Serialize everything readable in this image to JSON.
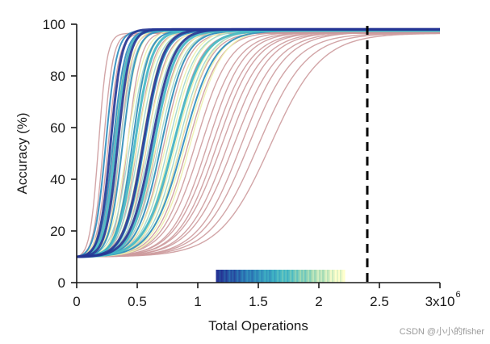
{
  "chart_data": {
    "type": "line",
    "xlabel": "Total Operations",
    "ylabel": "Accuracy (%)",
    "xlim": [
      0,
      3000000
    ],
    "ylim": [
      0,
      100
    ],
    "xticks": [
      0,
      500000,
      1000000,
      1500000,
      2000000,
      2500000,
      3000000
    ],
    "xtick_labels": [
      "0",
      "0.5",
      "1",
      "1.5",
      "2",
      "2.5",
      "3x10"
    ],
    "x_exponent": "6",
    "yticks": [
      0,
      20,
      40,
      60,
      80,
      100
    ],
    "ytick_labels": [
      "0",
      "20",
      "40",
      "60",
      "80",
      "100"
    ],
    "vertical_reference_line": {
      "x": 2400000,
      "style": "dashed",
      "color": "#000000"
    },
    "curve_model": "sigmoid accuracy from baseline 10% to a plateau near 96-98%, with midpoint (M, millions of operations) and width (W, millions)",
    "baseline_accuracy": 10,
    "series_groups": [
      {
        "name": "pink curves",
        "color": "#cd9b9d",
        "curves": [
          {
            "M": 0.18,
            "W": 0.035,
            "top": 96.5
          },
          {
            "M": 0.22,
            "W": 0.04,
            "top": 96.5
          },
          {
            "M": 0.26,
            "W": 0.045,
            "top": 96.5
          },
          {
            "M": 0.31,
            "W": 0.05,
            "top": 97
          },
          {
            "M": 0.36,
            "W": 0.05,
            "top": 97
          },
          {
            "M": 0.42,
            "W": 0.055,
            "top": 97
          },
          {
            "M": 0.5,
            "W": 0.07,
            "top": 97
          },
          {
            "M": 0.58,
            "W": 0.08,
            "top": 97
          },
          {
            "M": 0.66,
            "W": 0.09,
            "top": 97
          },
          {
            "M": 0.72,
            "W": 0.1,
            "top": 97
          },
          {
            "M": 0.8,
            "W": 0.11,
            "top": 97
          },
          {
            "M": 0.86,
            "W": 0.12,
            "top": 97
          },
          {
            "M": 0.92,
            "W": 0.13,
            "top": 97
          },
          {
            "M": 0.98,
            "W": 0.14,
            "top": 97
          },
          {
            "M": 1.03,
            "W": 0.15,
            "top": 97
          },
          {
            "M": 1.08,
            "W": 0.15,
            "top": 97
          },
          {
            "M": 1.12,
            "W": 0.16,
            "top": 97
          },
          {
            "M": 1.16,
            "W": 0.16,
            "top": 97
          },
          {
            "M": 1.2,
            "W": 0.17,
            "top": 97
          },
          {
            "M": 1.25,
            "W": 0.17,
            "top": 97
          },
          {
            "M": 1.3,
            "W": 0.18,
            "top": 97
          },
          {
            "M": 1.36,
            "W": 0.18,
            "top": 97
          },
          {
            "M": 1.42,
            "W": 0.19,
            "top": 96.5
          },
          {
            "M": 1.5,
            "W": 0.2,
            "top": 96.5
          },
          {
            "M": 1.6,
            "W": 0.21,
            "top": 96.5
          }
        ]
      },
      {
        "name": "yellow-green curves",
        "color": "#eef2b0",
        "curves": [
          {
            "M": 0.3,
            "W": 0.06,
            "top": 98
          },
          {
            "M": 0.34,
            "W": 0.06,
            "top": 98
          },
          {
            "M": 0.38,
            "W": 0.06,
            "top": 98
          },
          {
            "M": 0.42,
            "W": 0.07,
            "top": 98
          },
          {
            "M": 0.46,
            "W": 0.07,
            "top": 98
          },
          {
            "M": 0.5,
            "W": 0.08,
            "top": 98
          },
          {
            "M": 0.54,
            "W": 0.08,
            "top": 98
          },
          {
            "M": 0.58,
            "W": 0.09,
            "top": 98
          },
          {
            "M": 0.62,
            "W": 0.09,
            "top": 98
          },
          {
            "M": 0.66,
            "W": 0.1,
            "top": 98
          },
          {
            "M": 0.7,
            "W": 0.1,
            "top": 98
          },
          {
            "M": 0.74,
            "W": 0.11,
            "top": 98
          },
          {
            "M": 0.78,
            "W": 0.11,
            "top": 98
          },
          {
            "M": 0.82,
            "W": 0.12,
            "top": 98
          },
          {
            "M": 0.86,
            "W": 0.12,
            "top": 98
          },
          {
            "M": 0.9,
            "W": 0.13,
            "top": 98
          },
          {
            "M": 0.94,
            "W": 0.13,
            "top": 98
          }
        ]
      },
      {
        "name": "light cyan curves",
        "color": "#9fd6c8",
        "curves": [
          {
            "M": 0.36,
            "W": 0.06,
            "top": 97.5
          },
          {
            "M": 0.44,
            "W": 0.07,
            "top": 97.5
          },
          {
            "M": 0.52,
            "W": 0.08,
            "top": 97.5
          },
          {
            "M": 0.6,
            "W": 0.09,
            "top": 97.5
          },
          {
            "M": 0.68,
            "W": 0.1,
            "top": 97.5
          },
          {
            "M": 0.76,
            "W": 0.11,
            "top": 97.5
          },
          {
            "M": 0.84,
            "W": 0.12,
            "top": 97.5
          }
        ]
      },
      {
        "name": "blue curves",
        "color": "#2b8cbe",
        "curves": [
          {
            "M": 0.24,
            "W": 0.045,
            "top": 97.5
          },
          {
            "M": 0.3,
            "W": 0.05,
            "top": 97.5
          },
          {
            "M": 0.38,
            "W": 0.055,
            "top": 97.5
          },
          {
            "M": 0.46,
            "W": 0.065,
            "top": 97.5
          },
          {
            "M": 0.56,
            "W": 0.08,
            "top": 97.5
          },
          {
            "M": 0.7,
            "W": 0.1,
            "top": 97.5
          },
          {
            "M": 0.88,
            "W": 0.13,
            "top": 97.5
          }
        ]
      },
      {
        "name": "teal curves",
        "color": "#41b6c4",
        "curves": [
          {
            "M": 0.32,
            "W": 0.05,
            "top": 97.5
          },
          {
            "M": 0.48,
            "W": 0.07,
            "top": 97.5
          },
          {
            "M": 0.64,
            "W": 0.09,
            "top": 97.5
          },
          {
            "M": 0.8,
            "W": 0.12,
            "top": 97.5
          }
        ]
      },
      {
        "name": "navy curves",
        "color": "#253494",
        "curves": [
          {
            "M": 0.28,
            "W": 0.045,
            "top": 98
          },
          {
            "M": 0.34,
            "W": 0.05,
            "top": 98
          },
          {
            "M": 0.55,
            "W": 0.08,
            "top": 98
          },
          {
            "M": 0.62,
            "W": 0.09,
            "top": 98
          }
        ]
      }
    ],
    "color_strip": {
      "x_range": [
        1150000,
        2200000
      ],
      "y_range": [
        0,
        5
      ],
      "colors": [
        "#253494",
        "#2c7fb8",
        "#41b6c4",
        "#a1dab4",
        "#ffffcc"
      ]
    },
    "watermark": "CSDN @小小的fisher"
  }
}
